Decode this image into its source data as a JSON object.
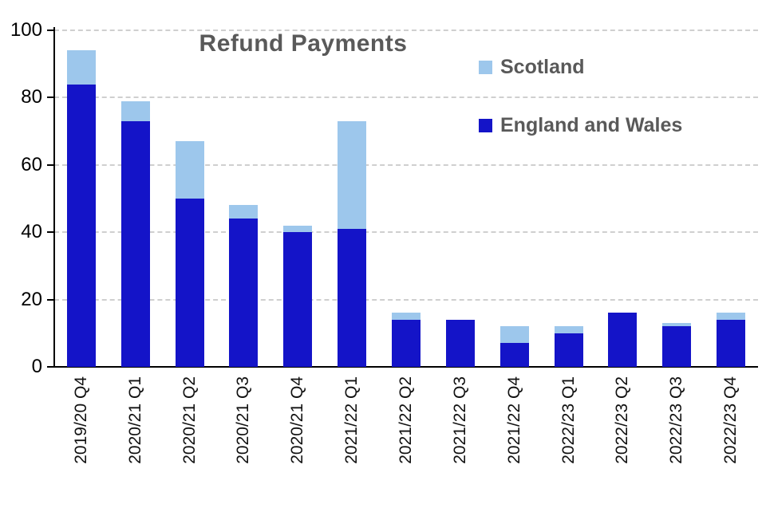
{
  "chart_data": {
    "type": "bar",
    "stacked": true,
    "title": "Refund Payments",
    "categories": [
      "2019/20 Q4",
      "2020/21 Q1",
      "2020/21 Q2",
      "2020/21 Q3",
      "2020/21 Q4",
      "2021/22 Q1",
      "2021/22 Q2",
      "2021/22 Q3",
      "2021/22 Q4",
      "2022/23 Q1",
      "2022/23 Q2",
      "2022/23 Q3",
      "2022/23 Q4"
    ],
    "series": [
      {
        "name": "England and Wales",
        "color": "#1414C8",
        "values": [
          84,
          73,
          50,
          44,
          40,
          41,
          14,
          14,
          7,
          10,
          16,
          12,
          14
        ]
      },
      {
        "name": "Scotland",
        "color": "#9DC7EC",
        "values": [
          10,
          6,
          17,
          4,
          2,
          32,
          2,
          0,
          5,
          2,
          0,
          1,
          2
        ]
      }
    ],
    "ylim": [
      0,
      100
    ],
    "y_ticks": [
      0,
      20,
      40,
      60,
      80,
      100
    ],
    "xlabel": "",
    "ylabel": "",
    "grid": "horizontal-dashed",
    "legend_position": "top-right",
    "legend": [
      {
        "label": "Scotland",
        "color": "#9DC7EC"
      },
      {
        "label": "England and Wales",
        "color": "#1414C8"
      }
    ],
    "text_color": "#595959"
  }
}
